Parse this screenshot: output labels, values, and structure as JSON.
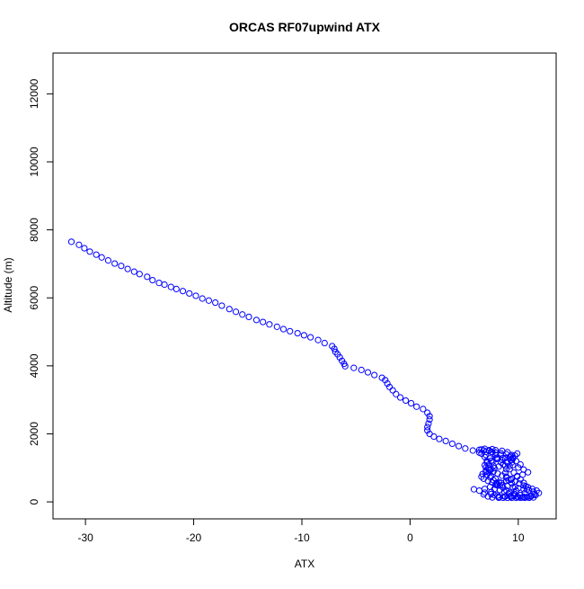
{
  "chart_data": {
    "type": "scatter",
    "title": "ORCAS RF07upwind ATX",
    "xlabel": "ATX",
    "ylabel": "Altitude (m)",
    "xlim": [
      -33,
      13.5
    ],
    "ylim": [
      -500,
      13200
    ],
    "x_ticks": [
      -30,
      -20,
      -10,
      0,
      10
    ],
    "y_ticks": [
      0,
      2000,
      4000,
      6000,
      8000,
      10000,
      12000
    ],
    "grid": false,
    "legend": "none",
    "marker_color": "#0000ff",
    "marker": "open-circle",
    "points": [
      [
        -31.3,
        7650
      ],
      [
        -30.6,
        7560
      ],
      [
        -30.1,
        7460
      ],
      [
        -29.6,
        7360
      ],
      [
        -29.0,
        7270
      ],
      [
        -28.5,
        7190
      ],
      [
        -27.9,
        7100
      ],
      [
        -27.3,
        7010
      ],
      [
        -26.7,
        6940
      ],
      [
        -26.1,
        6850
      ],
      [
        -25.5,
        6770
      ],
      [
        -25.0,
        6700
      ],
      [
        -24.3,
        6620
      ],
      [
        -23.8,
        6520
      ],
      [
        -23.2,
        6440
      ],
      [
        -22.7,
        6390
      ],
      [
        -22.1,
        6320
      ],
      [
        -21.6,
        6260
      ],
      [
        -21.0,
        6200
      ],
      [
        -20.4,
        6130
      ],
      [
        -19.8,
        6060
      ],
      [
        -19.2,
        5980
      ],
      [
        -18.6,
        5920
      ],
      [
        -18.0,
        5860
      ],
      [
        -17.4,
        5770
      ],
      [
        -16.7,
        5670
      ],
      [
        -16.1,
        5590
      ],
      [
        -15.5,
        5510
      ],
      [
        -14.9,
        5440
      ],
      [
        -14.2,
        5350
      ],
      [
        -13.6,
        5290
      ],
      [
        -13.0,
        5220
      ],
      [
        -12.3,
        5150
      ],
      [
        -11.7,
        5080
      ],
      [
        -11.1,
        5020
      ],
      [
        -10.4,
        4960
      ],
      [
        -9.8,
        4900
      ],
      [
        -9.2,
        4840
      ],
      [
        -8.5,
        4760
      ],
      [
        -7.9,
        4670
      ],
      [
        -7.2,
        4580
      ],
      [
        -7.0,
        4500
      ],
      [
        -6.9,
        4410
      ],
      [
        -6.7,
        4340
      ],
      [
        -6.5,
        4250
      ],
      [
        -6.3,
        4150
      ],
      [
        -6.1,
        4060
      ],
      [
        -6.0,
        3990
      ],
      [
        -5.2,
        3940
      ],
      [
        -4.5,
        3880
      ],
      [
        -3.9,
        3810
      ],
      [
        -3.3,
        3730
      ],
      [
        -2.6,
        3650
      ],
      [
        -2.3,
        3580
      ],
      [
        -2.1,
        3480
      ],
      [
        -1.9,
        3380
      ],
      [
        -1.6,
        3280
      ],
      [
        -1.3,
        3170
      ],
      [
        -0.9,
        3070
      ],
      [
        -0.4,
        2980
      ],
      [
        0.1,
        2900
      ],
      [
        0.6,
        2800
      ],
      [
        1.2,
        2730
      ],
      [
        1.6,
        2620
      ],
      [
        1.8,
        2520
      ],
      [
        1.8,
        2420
      ],
      [
        1.7,
        2300
      ],
      [
        1.6,
        2200
      ],
      [
        1.6,
        2100
      ],
      [
        1.8,
        2000
      ],
      [
        2.2,
        1920
      ],
      [
        2.7,
        1850
      ],
      [
        3.3,
        1790
      ],
      [
        3.9,
        1710
      ],
      [
        4.5,
        1640
      ],
      [
        5.1,
        1570
      ],
      [
        5.8,
        1510
      ],
      [
        6.4,
        1450
      ],
      [
        7.0,
        1380
      ],
      [
        7.4,
        1280
      ],
      [
        7.6,
        1170
      ],
      [
        7.7,
        1060
      ],
      [
        7.5,
        960
      ],
      [
        7.3,
        860
      ],
      [
        7.5,
        760
      ],
      [
        7.9,
        680
      ],
      [
        8.2,
        580
      ],
      [
        8.1,
        480
      ],
      [
        7.8,
        380
      ],
      [
        7.5,
        290
      ],
      [
        7.8,
        200
      ],
      [
        8.2,
        150
      ],
      [
        8.8,
        160
      ],
      [
        9.3,
        180
      ],
      [
        9.6,
        240
      ],
      [
        9.8,
        330
      ],
      [
        9.7,
        440
      ],
      [
        9.4,
        540
      ],
      [
        9.1,
        640
      ],
      [
        8.9,
        740
      ],
      [
        8.8,
        850
      ],
      [
        8.9,
        960
      ],
      [
        9.2,
        1060
      ],
      [
        9.4,
        1160
      ],
      [
        9.5,
        1270
      ],
      [
        9.4,
        1380
      ],
      [
        9.0,
        1460
      ],
      [
        8.5,
        1500
      ],
      [
        7.9,
        1520
      ],
      [
        7.3,
        1520
      ],
      [
        6.8,
        1510
      ],
      [
        6.4,
        1530
      ],
      [
        6.6,
        1420
      ],
      [
        6.9,
        1320
      ],
      [
        7.1,
        1200
      ],
      [
        7.3,
        1100
      ],
      [
        7.2,
        1000
      ],
      [
        7.0,
        900
      ],
      [
        7.1,
        800
      ],
      [
        7.4,
        720
      ],
      [
        7.7,
        640
      ],
      [
        8.0,
        560
      ],
      [
        8.3,
        480
      ],
      [
        8.6,
        420
      ],
      [
        8.9,
        340
      ],
      [
        9.2,
        270
      ],
      [
        9.7,
        220
      ],
      [
        10.2,
        200
      ],
      [
        10.6,
        260
      ],
      [
        10.8,
        360
      ],
      [
        10.7,
        460
      ],
      [
        10.5,
        560
      ],
      [
        10.2,
        660
      ],
      [
        9.9,
        760
      ],
      [
        9.6,
        860
      ],
      [
        9.2,
        960
      ],
      [
        8.8,
        1060
      ],
      [
        8.4,
        1160
      ],
      [
        8.1,
        1270
      ],
      [
        7.9,
        1380
      ],
      [
        7.6,
        1460
      ],
      [
        7.3,
        1500
      ],
      [
        7.0,
        1470
      ],
      [
        8.0,
        1300
      ],
      [
        8.5,
        1230
      ],
      [
        9.0,
        1150
      ],
      [
        9.5,
        1080
      ],
      [
        10.0,
        1010
      ],
      [
        10.5,
        950
      ],
      [
        10.9,
        870
      ],
      [
        10.4,
        800
      ],
      [
        9.9,
        740
      ],
      [
        9.4,
        680
      ],
      [
        8.9,
        620
      ],
      [
        8.4,
        560
      ],
      [
        7.9,
        500
      ],
      [
        7.4,
        440
      ],
      [
        6.9,
        380
      ],
      [
        6.4,
        330
      ],
      [
        6.9,
        270
      ],
      [
        7.5,
        230
      ],
      [
        8.1,
        190
      ],
      [
        8.7,
        160
      ],
      [
        9.3,
        150
      ],
      [
        9.9,
        150
      ],
      [
        10.5,
        150
      ],
      [
        11.1,
        160
      ],
      [
        11.6,
        200
      ],
      [
        11.9,
        260
      ],
      [
        11.7,
        330
      ],
      [
        11.3,
        380
      ],
      [
        10.9,
        430
      ],
      [
        10.5,
        480
      ],
      [
        10.1,
        540
      ],
      [
        9.7,
        600
      ],
      [
        9.3,
        650
      ],
      [
        8.9,
        710
      ],
      [
        8.5,
        770
      ],
      [
        8.1,
        830
      ],
      [
        7.7,
        890
      ],
      [
        7.3,
        950
      ],
      [
        7.0,
        1010
      ],
      [
        6.9,
        1080
      ],
      [
        7.1,
        1150
      ],
      [
        7.5,
        1210
      ],
      [
        8.0,
        1260
      ],
      [
        8.6,
        1290
      ],
      [
        9.2,
        1320
      ],
      [
        9.7,
        1360
      ],
      [
        9.9,
        1420
      ],
      [
        8.3,
        350
      ],
      [
        8.7,
        300
      ],
      [
        9.1,
        240
      ],
      [
        9.6,
        180
      ],
      [
        10.0,
        140
      ],
      [
        10.4,
        130
      ],
      [
        10.8,
        140
      ],
      [
        11.2,
        170
      ],
      [
        11.5,
        230
      ],
      [
        11.4,
        300
      ],
      [
        11.0,
        340
      ],
      [
        10.5,
        370
      ],
      [
        10.0,
        400
      ],
      [
        9.5,
        430
      ],
      [
        9.0,
        460
      ],
      [
        8.5,
        490
      ],
      [
        8.0,
        520
      ],
      [
        7.6,
        570
      ],
      [
        7.2,
        620
      ],
      [
        6.8,
        680
      ],
      [
        6.6,
        740
      ],
      [
        6.7,
        820
      ],
      [
        7.0,
        880
      ],
      [
        7.4,
        930
      ],
      [
        7.8,
        990
      ],
      [
        8.2,
        1040
      ],
      [
        8.6,
        1100
      ],
      [
        9.0,
        1170
      ],
      [
        9.3,
        1230
      ],
      [
        9.5,
        1300
      ],
      [
        9.3,
        1350
      ],
      [
        8.9,
        1400
      ],
      [
        8.4,
        1430
      ],
      [
        7.9,
        1450
      ],
      [
        7.5,
        1470
      ],
      [
        8.2,
        120
      ],
      [
        8.6,
        120
      ],
      [
        9.0,
        120
      ],
      [
        9.4,
        120
      ],
      [
        9.8,
        120
      ],
      [
        10.2,
        120
      ],
      [
        10.6,
        120
      ],
      [
        11.0,
        120
      ],
      [
        11.4,
        130
      ],
      [
        7.6,
        130
      ],
      [
        7.2,
        160
      ],
      [
        6.8,
        220
      ],
      [
        5.9,
        370
      ],
      [
        6.6,
        1540
      ],
      [
        6.9,
        1560
      ],
      [
        7.6,
        1550
      ],
      [
        8.4,
        1380
      ],
      [
        8.8,
        1290
      ],
      [
        10.2,
        1100
      ],
      [
        9.8,
        1200
      ]
    ]
  }
}
